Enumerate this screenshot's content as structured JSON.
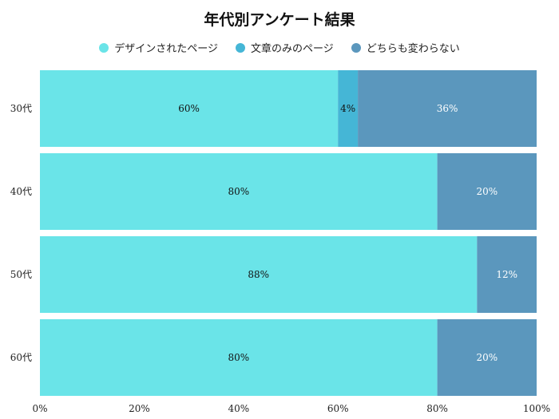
{
  "chart_data": {
    "type": "bar",
    "orientation": "horizontal",
    "stacked": true,
    "percent": true,
    "title": "年代別アンケート結果",
    "categories": [
      "30代",
      "40代",
      "50代",
      "60代"
    ],
    "series": [
      {
        "name": "デザインされたページ",
        "values": [
          60,
          80,
          88,
          80
        ],
        "color": "#6ae4e8",
        "label_color": "#111111"
      },
      {
        "name": "文章のみのページ",
        "values": [
          4,
          0,
          0,
          0
        ],
        "color": "#45b6d6",
        "label_color": "#111111"
      },
      {
        "name": "どちらも変わらない",
        "values": [
          36,
          20,
          12,
          20
        ],
        "color": "#5b97bd",
        "label_color": "#ffffff"
      }
    ],
    "xlim": [
      0,
      100
    ],
    "xticks": [
      0,
      20,
      40,
      60,
      80,
      100
    ],
    "tick_suffix": "%",
    "legend_position": "top",
    "grid": false
  }
}
